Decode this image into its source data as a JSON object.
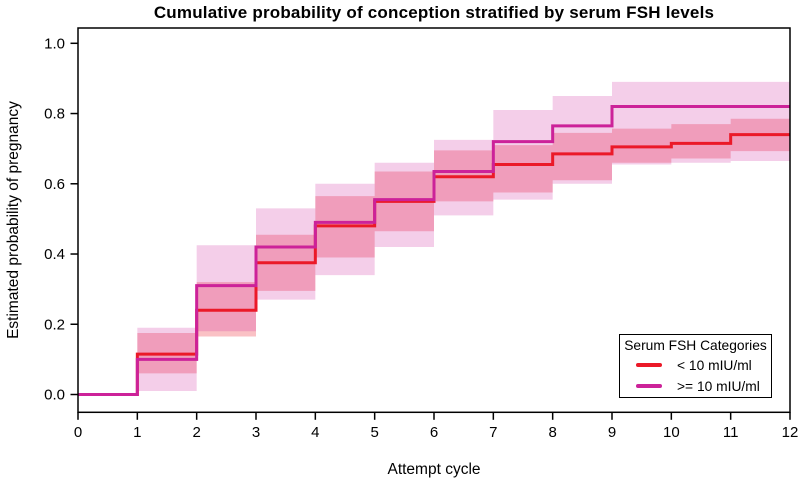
{
  "chart": {
    "title": "Cumulative probability of conception stratified by serum FSH levels",
    "xlabel": "Attempt cycle",
    "ylabel": "Estimated probability of pregnancy"
  },
  "chart_data": {
    "type": "line",
    "subtype": "step-cumulative-incidence-with-confidence-bands",
    "title": "Cumulative probability of conception stratified by serum FSH levels",
    "xlabel": "Attempt cycle",
    "ylabel": "Estimated probability of pregnancy",
    "xlim": [
      0,
      12
    ],
    "ylim": [
      0,
      1.0
    ],
    "x_ticks": [
      0,
      1,
      2,
      3,
      4,
      5,
      6,
      7,
      8,
      9,
      10,
      11,
      12
    ],
    "y_ticks": [
      0.0,
      0.2,
      0.4,
      0.6,
      0.8,
      1.0
    ],
    "grid": false,
    "interval_start_cycles": [
      0,
      1,
      2,
      3,
      4,
      5,
      6,
      7,
      8,
      9,
      10,
      11
    ],
    "series": [
      {
        "name": "< 10 mIU/ml",
        "color": "#EB1928",
        "band_opacity": 0.27,
        "values": [
          0,
          0.115,
          0.24,
          0.375,
          0.48,
          0.55,
          0.62,
          0.655,
          0.685,
          0.705,
          0.715,
          0.74
        ],
        "ci_lower": [
          0,
          0.06,
          0.165,
          0.295,
          0.39,
          0.465,
          0.55,
          0.575,
          0.61,
          0.66,
          0.672,
          0.693
        ],
        "ci_upper": [
          0,
          0.175,
          0.32,
          0.455,
          0.565,
          0.635,
          0.695,
          0.71,
          0.745,
          0.757,
          0.77,
          0.785
        ]
      },
      {
        "name": ">= 10 mIU/ml",
        "color": "#CC2299",
        "band_opacity": 0.22,
        "values": [
          0,
          0.1,
          0.31,
          0.42,
          0.49,
          0.555,
          0.635,
          0.72,
          0.765,
          0.82,
          0.82,
          0.82
        ],
        "ci_lower": [
          0,
          0.01,
          0.18,
          0.27,
          0.34,
          0.42,
          0.51,
          0.555,
          0.6,
          0.655,
          0.66,
          0.665
        ],
        "ci_upper": [
          0,
          0.19,
          0.425,
          0.53,
          0.6,
          0.66,
          0.725,
          0.81,
          0.85,
          0.89,
          0.89,
          0.89
        ]
      }
    ],
    "legend": {
      "title": "Serum FSH Categories",
      "position": "bottom-right"
    }
  }
}
